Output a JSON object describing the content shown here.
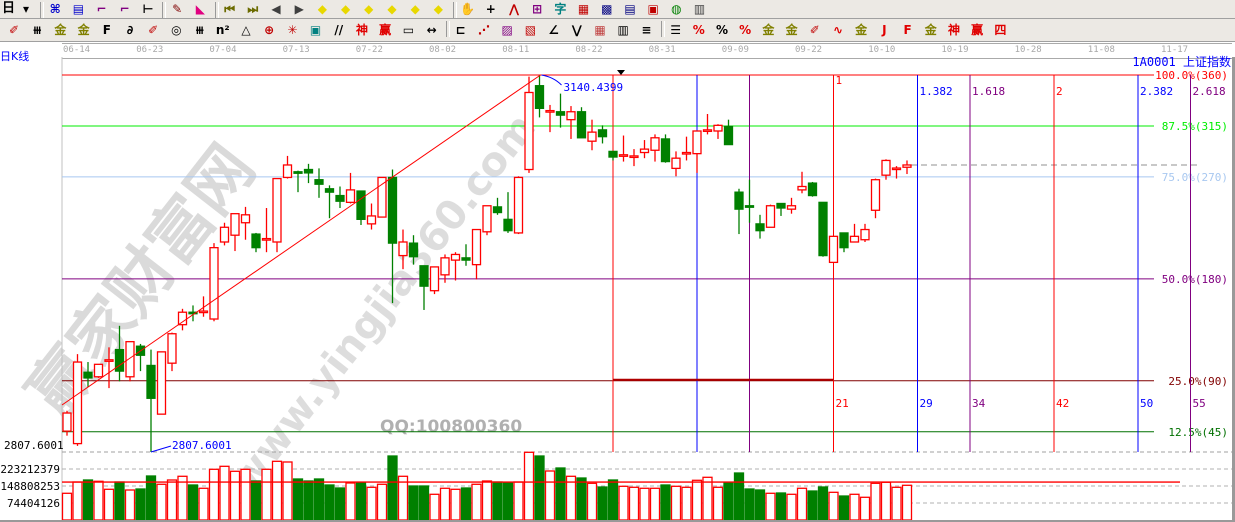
{
  "toolbar": {
    "period_label": "日",
    "row1": [
      {
        "name": "period-dropdown-icon",
        "glyph": "▾",
        "color": "#000"
      },
      {
        "name": "indicator-icon",
        "glyph": "⌘",
        "color": "#0000cc"
      },
      {
        "name": "notepad-icon",
        "glyph": "▤",
        "color": "#0000cc"
      },
      {
        "name": "weekly-step-icon",
        "glyph": "⌐",
        "color": "#800080"
      },
      {
        "name": "monthly-step-icon",
        "glyph": "⌐",
        "color": "#800080"
      },
      {
        "name": "cursor-dropdown-icon",
        "glyph": "⊢",
        "color": "#000"
      },
      {
        "name": "f10-icon",
        "glyph": "✎",
        "color": "#800000"
      },
      {
        "name": "color-flag-icon",
        "glyph": "◣",
        "color": "#e00080"
      },
      {
        "name": "first-bar-icon",
        "glyph": "⏮",
        "color": "#6b6b00"
      },
      {
        "name": "last-bar-icon",
        "glyph": "⏭",
        "color": "#6b6b00"
      },
      {
        "name": "left-arrow-icon",
        "glyph": "◀",
        "color": "#404040"
      },
      {
        "name": "right-arrow-icon",
        "glyph": "▶",
        "color": "#404040"
      },
      {
        "name": "scroll-left-icon",
        "glyph": "◆",
        "color": "#e8d800"
      },
      {
        "name": "scroll-right-icon",
        "glyph": "◆",
        "color": "#e8d800"
      },
      {
        "name": "zoom-horizontal-icon",
        "glyph": "◆",
        "color": "#e8d800"
      },
      {
        "name": "shrink-icon",
        "glyph": "◆",
        "color": "#e8d800"
      },
      {
        "name": "expand-icon",
        "glyph": "◆",
        "color": "#e8d800"
      },
      {
        "name": "move-all-icon",
        "glyph": "◆",
        "color": "#e8d800"
      },
      {
        "name": "hand-icon",
        "glyph": "✋",
        "color": "#000"
      },
      {
        "name": "crosshair-icon",
        "glyph": "+",
        "color": "#000"
      },
      {
        "name": "line-tool-icon",
        "glyph": "⋀",
        "color": "#c00000"
      },
      {
        "name": "overlay-icon",
        "glyph": "⊞",
        "color": "#800080"
      },
      {
        "name": "text-icon",
        "glyph": "字",
        "color": "#008080"
      },
      {
        "name": "calendar-icon",
        "glyph": "▦",
        "color": "#c00000"
      },
      {
        "name": "calculator-icon",
        "glyph": "▩",
        "color": "#000080"
      },
      {
        "name": "report-icon",
        "glyph": "▤",
        "color": "#000080"
      },
      {
        "name": "save-icon",
        "glyph": "▣",
        "color": "#c00000"
      },
      {
        "name": "globe-icon",
        "glyph": "◍",
        "color": "#008000"
      },
      {
        "name": "printer-icon",
        "glyph": "▥",
        "color": "#404040"
      }
    ],
    "row2": [
      {
        "name": "pen-icon",
        "glyph": "✐",
        "color": "#c00000"
      },
      {
        "name": "parallel-lines-icon",
        "glyph": "⧻",
        "color": "#000"
      },
      {
        "name": "gold-split-icon",
        "glyph": "金",
        "color": "#808000"
      },
      {
        "name": "gold-split2-icon",
        "glyph": "金",
        "color": "#808000"
      },
      {
        "name": "fib-lines-icon",
        "glyph": "F",
        "color": "#000"
      },
      {
        "name": "spiral-icon",
        "glyph": "∂",
        "color": "#000"
      },
      {
        "name": "marker-icon",
        "glyph": "✐",
        "color": "#c00000"
      },
      {
        "name": "cycle-icon",
        "glyph": "◎",
        "color": "#000"
      },
      {
        "name": "equal-lines-icon",
        "glyph": "⧻",
        "color": "#000"
      },
      {
        "name": "square-lines-icon",
        "glyph": "n²",
        "color": "#000"
      },
      {
        "name": "triangle-icon",
        "glyph": "△",
        "color": "#000"
      },
      {
        "name": "target-icon",
        "glyph": "⊕",
        "color": "#c00000"
      },
      {
        "name": "star-icon",
        "glyph": "✳",
        "color": "#c00000"
      },
      {
        "name": "box-icon",
        "glyph": "▣",
        "color": "#008080"
      },
      {
        "name": "angle-lines-icon",
        "glyph": "//",
        "color": "#000"
      },
      {
        "name": "shen-icon",
        "glyph": "神",
        "color": "#e00000"
      },
      {
        "name": "ying-icon",
        "glyph": "赢",
        "color": "#e00000"
      },
      {
        "name": "ruler-icon",
        "glyph": "▭",
        "color": "#000"
      },
      {
        "name": "measure-icon",
        "glyph": "↔",
        "color": "#000"
      },
      {
        "name": "gann-box-icon",
        "glyph": "⊏",
        "color": "#000"
      },
      {
        "name": "gann-fan-icon",
        "glyph": "⋰",
        "color": "#c00000"
      },
      {
        "name": "gann-grid-icon",
        "glyph": "▨",
        "color": "#800080"
      },
      {
        "name": "gann-square-icon",
        "glyph": "▧",
        "color": "#c00000"
      },
      {
        "name": "speed-lines-icon",
        "glyph": "∠",
        "color": "#000"
      },
      {
        "name": "zigzag-icon",
        "glyph": "⋁",
        "color": "#000"
      },
      {
        "name": "grid-icon",
        "glyph": "▦",
        "color": "#c04040"
      },
      {
        "name": "table-icon",
        "glyph": "▥",
        "color": "#000"
      },
      {
        "name": "slant-lines-icon",
        "glyph": "≡",
        "color": "#000"
      },
      {
        "name": "list-icon",
        "glyph": "☰",
        "color": "#000"
      },
      {
        "name": "percent-red-icon",
        "glyph": "%",
        "color": "#e00000"
      },
      {
        "name": "percent-icon",
        "glyph": "%",
        "color": "#000"
      },
      {
        "name": "percent-lines-icon",
        "glyph": "%",
        "color": "#e00000"
      },
      {
        "name": "gold-coin-icon",
        "glyph": "金",
        "color": "#808000"
      },
      {
        "name": "gold-lines-icon",
        "glyph": "金",
        "color": "#808000"
      },
      {
        "name": "pen-lines-icon",
        "glyph": "✐",
        "color": "#c00000"
      },
      {
        "name": "wave-icon",
        "glyph": "∿",
        "color": "#e00000"
      },
      {
        "name": "gold-red-icon",
        "glyph": "金",
        "color": "#808000"
      },
      {
        "name": "j-angle-icon",
        "glyph": "J",
        "color": "#e00000"
      },
      {
        "name": "f-angle-icon",
        "glyph": "F",
        "color": "#e00000"
      },
      {
        "name": "gold-angle-icon",
        "glyph": "金",
        "color": "#808000"
      },
      {
        "name": "shen-angle-icon",
        "glyph": "神",
        "color": "#e00000"
      },
      {
        "name": "ying-angle-icon",
        "glyph": "赢",
        "color": "#e00000"
      },
      {
        "name": "si-angle-icon",
        "glyph": "四",
        "color": "#e00000"
      }
    ]
  },
  "kline_label": "日K线",
  "security": "1A0001 上证指数",
  "watermark": {
    "logo": "赢家财富网",
    "url": "www.yingjia360.com",
    "qq": "QQ:100800360"
  },
  "colors": {
    "up": "#ff0000",
    "down": "#008000",
    "annotation": "#0000ff"
  },
  "chart_data": {
    "type": "candlestick",
    "x_tick_labels": [
      "06-14",
      "06-23",
      "07-04",
      "07-13",
      "07-22",
      "08-02",
      "08-11",
      "08-22",
      "08-31",
      "09-09",
      "09-22",
      "10-10",
      "10-19",
      "10-28",
      "11-08",
      "11-17"
    ],
    "ohlc": [
      [
        2826,
        2844,
        2822,
        2842
      ],
      [
        2815,
        2894,
        2813,
        2887
      ],
      [
        2878,
        2887,
        2865,
        2873
      ],
      [
        2874,
        2885,
        2873,
        2885
      ],
      [
        2888,
        2900,
        2864,
        2889
      ],
      [
        2898,
        2919,
        2870,
        2879
      ],
      [
        2874,
        2905,
        2870,
        2905
      ],
      [
        2901,
        2903,
        2879,
        2893
      ],
      [
        2884,
        2898,
        2807.6,
        2855
      ],
      [
        2841,
        2896,
        2841,
        2896
      ],
      [
        2886,
        2913,
        2879,
        2912
      ],
      [
        2920,
        2934,
        2915,
        2931
      ],
      [
        2931,
        2937,
        2923,
        2930
      ],
      [
        2931,
        2945,
        2927,
        2932
      ],
      [
        2925,
        2992,
        2923,
        2988
      ],
      [
        2993,
        3010,
        2990,
        3006
      ],
      [
        2999,
        3018,
        2985,
        3018
      ],
      [
        3010,
        3024,
        2995,
        3017
      ],
      [
        3000,
        3001,
        2984,
        2988
      ],
      [
        2995,
        3023,
        2984,
        2996
      ],
      [
        2993,
        3049,
        2984,
        3049
      ],
      [
        3050,
        3069,
        3049,
        3061
      ],
      [
        3055,
        3056,
        3037,
        3054
      ],
      [
        3057,
        3062,
        3045,
        3054
      ],
      [
        3048,
        3058,
        3032,
        3044
      ],
      [
        3040,
        3043,
        3014,
        3037
      ],
      [
        3034,
        3042,
        3023,
        3029
      ],
      [
        3028,
        3054,
        3027,
        3039
      ],
      [
        3038,
        3038,
        3008,
        3013
      ],
      [
        3009,
        3027,
        3004,
        3016
      ],
      [
        3015,
        3050,
        3015,
        3050
      ],
      [
        3050,
        3057,
        2939,
        2992
      ],
      [
        2981,
        3004,
        2969,
        2993
      ],
      [
        2992,
        2999,
        2973,
        2980
      ],
      [
        2972,
        2972,
        2933,
        2954
      ],
      [
        2950,
        2971,
        2947,
        2971
      ],
      [
        2964,
        2982,
        2957,
        2979
      ],
      [
        2977,
        2984,
        2959,
        2982
      ],
      [
        2979,
        2991,
        2972,
        2977
      ],
      [
        2973,
        3004,
        2960,
        3004
      ],
      [
        3002,
        3025,
        2999,
        3025
      ],
      [
        3024,
        3032,
        3017,
        3019
      ],
      [
        3013,
        3037,
        3001,
        3003
      ],
      [
        3001,
        3051,
        3000,
        3050
      ],
      [
        3057,
        3139,
        3054,
        3125
      ],
      [
        3131,
        3140.44,
        3103,
        3111
      ],
      [
        3108,
        3114,
        3090,
        3109
      ],
      [
        3108,
        3124,
        3094,
        3105
      ],
      [
        3101,
        3113,
        3084,
        3108
      ],
      [
        3108,
        3112,
        3085,
        3085
      ],
      [
        3082,
        3101,
        3074,
        3090
      ],
      [
        3092,
        3096,
        3080,
        3086
      ],
      [
        3073,
        3073,
        3065,
        3068
      ],
      [
        3069.6,
        3087,
        3064,
        3070
      ],
      [
        3068.7,
        3075,
        3060,
        3069
      ],
      [
        3072,
        3083,
        3067,
        3075
      ],
      [
        3074,
        3088,
        3064,
        3085
      ],
      [
        3084,
        3088,
        3063,
        3064
      ],
      [
        3058,
        3073,
        3051,
        3067
      ],
      [
        3071,
        3086,
        3065,
        3072
      ],
      [
        3071,
        3091,
        3054,
        3091
      ],
      [
        3091,
        3106,
        3088,
        3092
      ],
      [
        3091,
        3097,
        3084,
        3096
      ],
      [
        3095,
        3101,
        3079,
        3079
      ],
      [
        3037,
        3040,
        3000,
        3022
      ],
      [
        3025,
        3048,
        3010,
        3024
      ],
      [
        3009,
        3017,
        2996,
        3003
      ],
      [
        3006,
        3026,
        3006,
        3025
      ],
      [
        3027,
        3027,
        3016,
        3023
      ],
      [
        3022,
        3032,
        3018,
        3025
      ],
      [
        3039,
        3055,
        3036,
        3042
      ],
      [
        3045,
        3046,
        3033,
        3034
      ],
      [
        3028,
        3028,
        2980,
        2981
      ],
      [
        2975,
        2998,
        2975,
        2998
      ],
      [
        3001,
        3001,
        2984,
        2988
      ],
      [
        2993,
        3009,
        2993,
        2998
      ],
      [
        2995,
        3009,
        2993,
        3004
      ],
      [
        3021,
        3049,
        3014,
        3048
      ],
      [
        3052,
        3066,
        3048,
        3065
      ],
      [
        3058,
        3060,
        3049,
        3058.3
      ],
      [
        3059,
        3065,
        3053,
        3061
      ]
    ],
    "volume": [
      116900000,
      166300000,
      175100000,
      169400000,
      134400000,
      166300000,
      131300000,
      135700000,
      192600000,
      156300000,
      175100000,
      191300000,
      153200000,
      138800000,
      221900000,
      235000000,
      213200000,
      221900000,
      170700000,
      221900000,
      256900000,
      253900000,
      179500000,
      170700000,
      179500000,
      153200000,
      140100000,
      162000000,
      162000000,
      143100000,
      156300000,
      280100000,
      191300000,
      148800000,
      148800000,
      112500000,
      138800000,
      134400000,
      140100000,
      156300000,
      170700000,
      166300000,
      162000000,
      166300000,
      296300000,
      280100000,
      214500000,
      227600000,
      191300000,
      183800000,
      160600000,
      144400000,
      175100000,
      147500000,
      143100000,
      138800000,
      138800000,
      153200000,
      147500000,
      143100000,
      173800000,
      186900000,
      143100000,
      163300000,
      205700000,
      135700000,
      131300000,
      116900000,
      118200000,
      112500000,
      138800000,
      126900000,
      144400000,
      121200000,
      105000000,
      112500000,
      99400000,
      160600000,
      165000000,
      143100000,
      151900000
    ],
    "volume_ref_line": 166000000,
    "volume_axis_labels": [
      "223212379",
      "148808253",
      "74404126"
    ],
    "high_label": "3140.4399",
    "low_label": "2807.6001",
    "low_axis_label": "2807.6001",
    "gann_levels": [
      {
        "label": "100.0%(360)",
        "deg": 360,
        "color": "#ff0000"
      },
      {
        "label": "87.5%(315)",
        "deg": 315,
        "color": "#00ee00"
      },
      {
        "label": "75.0%(270)",
        "deg": 270,
        "color": "#a8c8f0"
      },
      {
        "label": "50.0%(180)",
        "deg": 180,
        "color": "#800080"
      },
      {
        "label": "25.0%(90)",
        "deg": 90,
        "color": "#800000"
      },
      {
        "label": "12.5%(45)",
        "deg": 45,
        "color": "#007000"
      }
    ],
    "fib_time_lines": [
      {
        "offset": 0,
        "top": "",
        "bottom": "",
        "color": "#ff0000"
      },
      {
        "offset": 8,
        "top": "",
        "bottom": "",
        "color": "#0000ff"
      },
      {
        "offset": 13,
        "top": "",
        "bottom": "",
        "color": "#800080"
      },
      {
        "offset": 21,
        "top": "1",
        "bottom": "21",
        "color": "#ff0000"
      },
      {
        "offset": 29,
        "top": "1.382",
        "bottom": "29",
        "color": "#0000ff"
      },
      {
        "offset": 34,
        "top": "1.618",
        "bottom": "34",
        "color": "#800080"
      },
      {
        "offset": 42,
        "top": "2",
        "bottom": "42",
        "color": "#ff0000"
      },
      {
        "offset": 50,
        "top": "2.382",
        "bottom": "50",
        "color": "#0000ff"
      },
      {
        "offset": 55,
        "top": "2.618",
        "bottom": "55",
        "color": "#800080"
      }
    ]
  }
}
